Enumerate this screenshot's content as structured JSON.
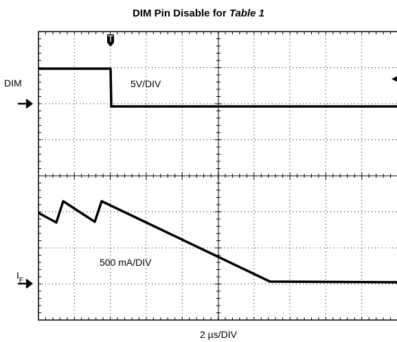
{
  "title": {
    "text": "DIM Pin Disable for ",
    "emphasis": "Table 1"
  },
  "channel1": {
    "label": "DIM",
    "scale": "5V/DIV"
  },
  "channel2": {
    "label": "I",
    "subscript": "F",
    "scale": "500 mA/DIV"
  },
  "timebase": "2 µs/DIV"
}
